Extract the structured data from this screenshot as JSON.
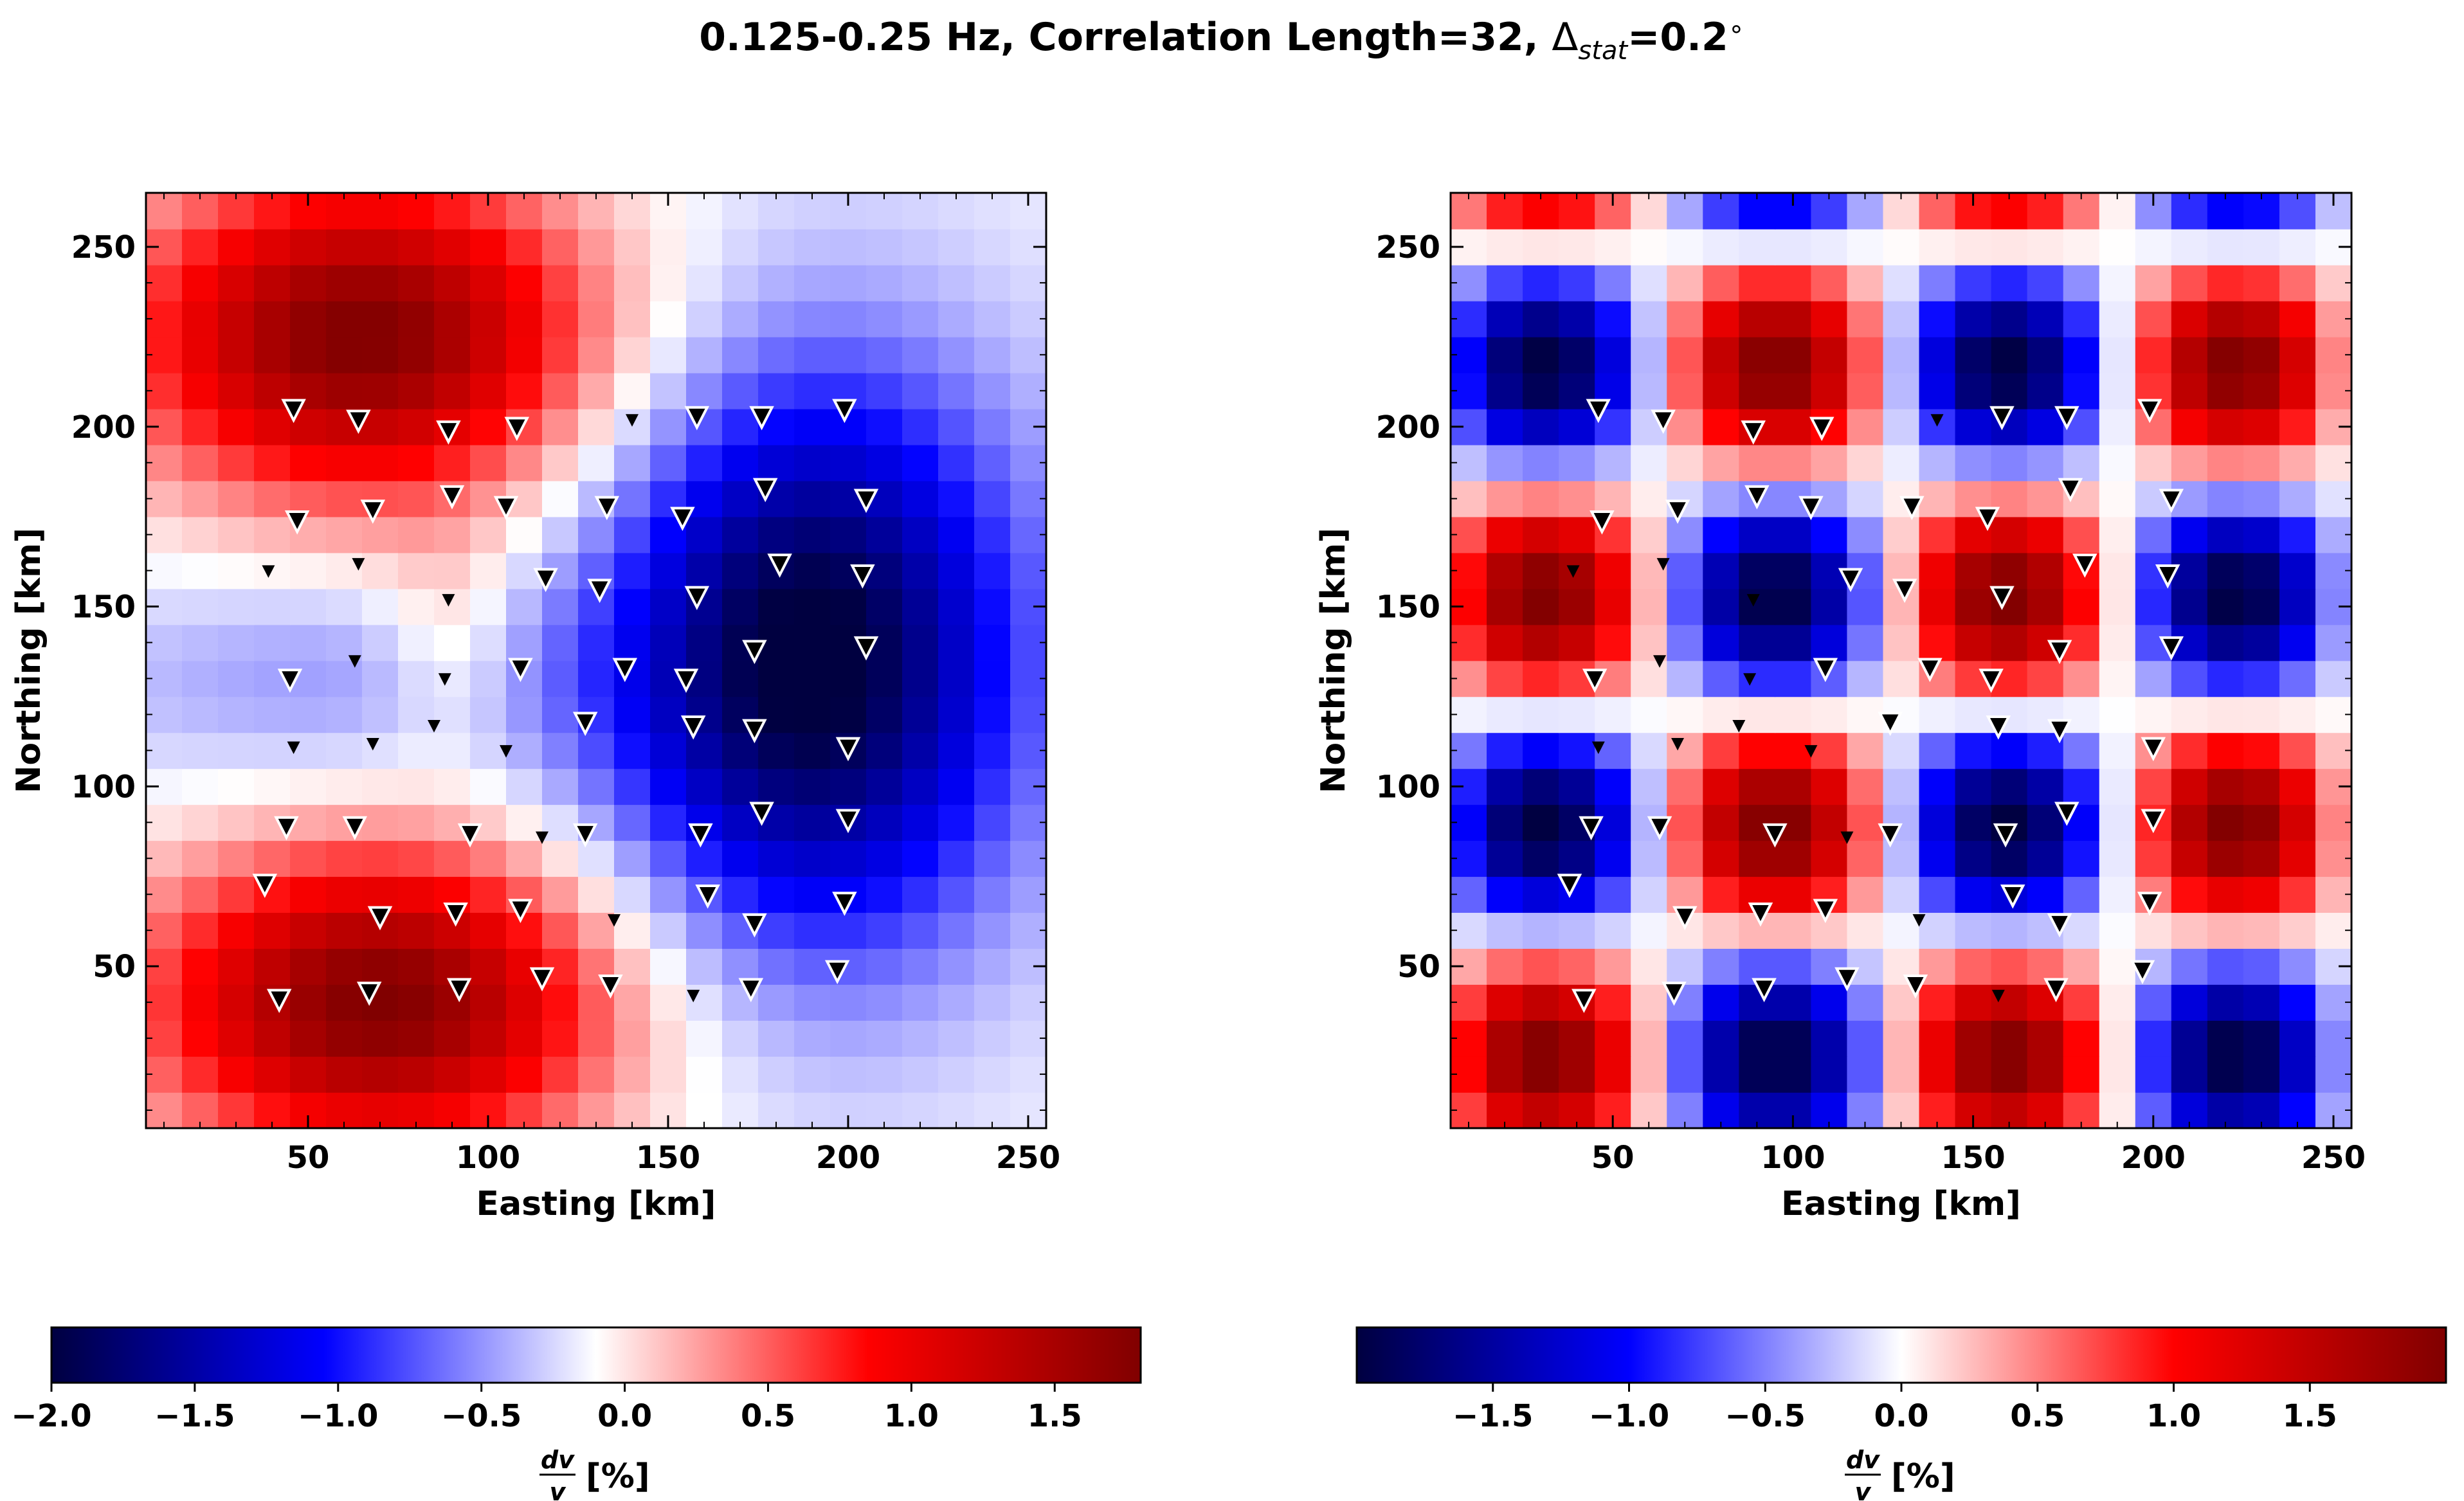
{
  "title": {
    "prefix": "0.125-0.25 Hz, Correlation Length=32, ",
    "delta": "Δ",
    "subscript": "stat",
    "suffix": "=0.2",
    "degree": "∘"
  },
  "colormap": {
    "stops": [
      "#000040",
      "#0000ff",
      "#ffffff",
      "#ff0000",
      "#800000"
    ]
  },
  "chart_data": [
    {
      "type": "heatmap",
      "title": "",
      "xlabel": "Easting [km]",
      "ylabel": "Northing [km]",
      "xlim": [
        5,
        255
      ],
      "ylim": [
        5,
        265
      ],
      "xticks": [
        50,
        100,
        150,
        200,
        250
      ],
      "yticks": [
        50,
        100,
        150,
        200,
        250
      ],
      "grid": {
        "nx": 25,
        "ny": 26
      },
      "field": {
        "constant": -0.15,
        "blobs": [
          {
            "cx": 65,
            "cy": 225,
            "sx": 45,
            "sy": 32,
            "amp": 1.95
          },
          {
            "cx": 70,
            "cy": 40,
            "sx": 45,
            "sy": 30,
            "amp": 1.95
          },
          {
            "cx": 190,
            "cy": 135,
            "sx": 40,
            "sy": 55,
            "amp": -1.95
          },
          {
            "cx": 60,
            "cy": 130,
            "sx": 55,
            "sy": 22,
            "amp": -0.35
          },
          {
            "cx": 90,
            "cy": 140,
            "sx": 14,
            "sy": 22,
            "amp": 0.35
          }
        ]
      },
      "colorbar": {
        "min": -2.0,
        "max": 1.8,
        "ticks": [
          -2.0,
          -1.5,
          -1.0,
          -0.5,
          0.0,
          0.5,
          1.0,
          1.5
        ],
        "tick_labels": [
          "−2.0",
          "−1.5",
          "−1.0",
          "−0.5",
          "0.0",
          "0.5",
          "1.0",
          "1.5"
        ],
        "label_numerator": "dv",
        "label_denominator": "v",
        "label_unit": "[%]"
      }
    },
    {
      "type": "heatmap",
      "title": "",
      "xlabel": "Easting [km]",
      "ylabel": "Northing [km]",
      "xlim": [
        5,
        255
      ],
      "ylim": [
        5,
        265
      ],
      "xticks": [
        50,
        100,
        150,
        200,
        250
      ],
      "yticks": [
        50,
        100,
        150,
        200,
        250
      ],
      "grid": {
        "nx": 25,
        "ny": 26
      },
      "field": {
        "type": "checkerboard",
        "amp": 2.0,
        "period": 128,
        "x0": -1,
        "y0": -7
      },
      "colorbar": {
        "min": -2.0,
        "max": 2.0,
        "ticks": [
          -1.5,
          -1.0,
          -0.5,
          0.0,
          0.5,
          1.0,
          1.5
        ],
        "tick_labels": [
          "−1.5",
          "−1.0",
          "−0.5",
          "0.0",
          "0.5",
          "1.0",
          "1.5"
        ],
        "label_numerator": "dv",
        "label_denominator": "v",
        "label_unit": "[%]"
      }
    }
  ],
  "stations": [
    [
      46,
      205,
      "t"
    ],
    [
      64,
      202,
      "t"
    ],
    [
      89,
      199,
      "t"
    ],
    [
      108,
      200,
      "t"
    ],
    [
      140,
      202,
      "s"
    ],
    [
      158,
      203,
      "t"
    ],
    [
      176,
      203,
      "t"
    ],
    [
      199,
      205,
      "t"
    ],
    [
      47,
      174,
      "t"
    ],
    [
      68,
      177,
      "t"
    ],
    [
      90,
      181,
      "t"
    ],
    [
      105,
      178,
      "t"
    ],
    [
      133,
      178,
      "t"
    ],
    [
      154,
      175,
      "t"
    ],
    [
      177,
      183,
      "t"
    ],
    [
      205,
      180,
      "t"
    ],
    [
      39,
      160,
      "s"
    ],
    [
      64,
      162,
      "s"
    ],
    [
      89,
      152,
      "s"
    ],
    [
      116,
      158,
      "t"
    ],
    [
      131,
      155,
      "t"
    ],
    [
      158,
      153,
      "t"
    ],
    [
      181,
      162,
      "t"
    ],
    [
      204,
      159,
      "t"
    ],
    [
      45,
      130,
      "t"
    ],
    [
      63,
      135,
      "s"
    ],
    [
      88,
      130,
      "s"
    ],
    [
      109,
      133,
      "t"
    ],
    [
      138,
      133,
      "t"
    ],
    [
      155,
      130,
      "t"
    ],
    [
      174,
      138,
      "t"
    ],
    [
      205,
      139,
      "t"
    ],
    [
      46,
      111,
      "s"
    ],
    [
      68,
      112,
      "s"
    ],
    [
      85,
      117,
      "s"
    ],
    [
      105,
      110,
      "s"
    ],
    [
      127,
      118,
      "t"
    ],
    [
      157,
      117,
      "t"
    ],
    [
      174,
      116,
      "t"
    ],
    [
      200,
      111,
      "t"
    ],
    [
      44,
      89,
      "t"
    ],
    [
      63,
      89,
      "t"
    ],
    [
      95,
      87,
      "t"
    ],
    [
      115,
      86,
      "s"
    ],
    [
      127,
      87,
      "t"
    ],
    [
      159,
      87,
      "t"
    ],
    [
      176,
      93,
      "t"
    ],
    [
      200,
      91,
      "t"
    ],
    [
      38,
      73,
      "t"
    ],
    [
      70,
      64,
      "t"
    ],
    [
      91,
      65,
      "t"
    ],
    [
      109,
      66,
      "t"
    ],
    [
      135,
      63,
      "s"
    ],
    [
      161,
      70,
      "t"
    ],
    [
      174,
      62,
      "t"
    ],
    [
      199,
      68,
      "t"
    ],
    [
      42,
      41,
      "t"
    ],
    [
      67,
      43,
      "t"
    ],
    [
      92,
      44,
      "t"
    ],
    [
      115,
      47,
      "t"
    ],
    [
      134,
      45,
      "t"
    ],
    [
      157,
      42,
      "s"
    ],
    [
      173,
      44,
      "t"
    ],
    [
      197,
      49,
      "t"
    ]
  ]
}
